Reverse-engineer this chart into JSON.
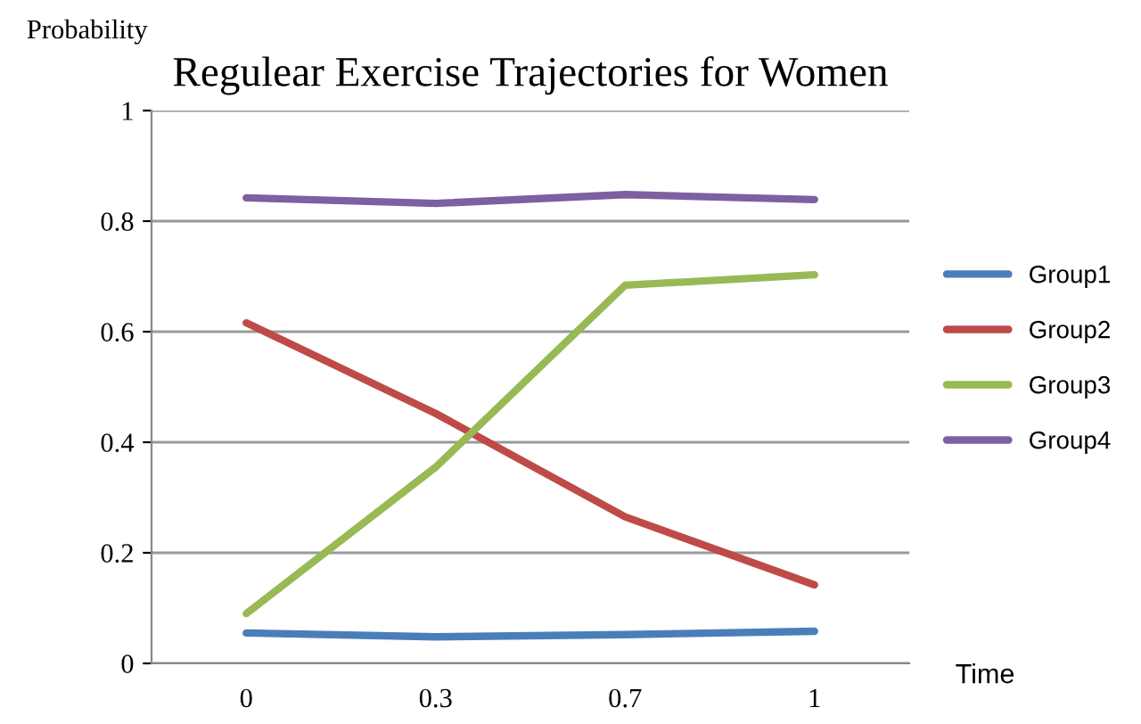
{
  "chart_data": {
    "type": "line",
    "title": "Regulear Exercise Trajectories for Women",
    "xlabel": "Time",
    "ylabel": "Probability",
    "categories": [
      "0",
      "0.3",
      "0.7",
      "1"
    ],
    "series": [
      {
        "name": "Group1",
        "color": "#4a7ebb",
        "values": [
          0.055,
          0.048,
          0.052,
          0.058
        ]
      },
      {
        "name": "Group2",
        "color": "#be4b48",
        "values": [
          0.616,
          0.452,
          0.265,
          0.142
        ]
      },
      {
        "name": "Group3",
        "color": "#98b954",
        "values": [
          0.09,
          0.355,
          0.684,
          0.703
        ]
      },
      {
        "name": "Group4",
        "color": "#7d60a0",
        "values": [
          0.842,
          0.832,
          0.848,
          0.839
        ]
      }
    ],
    "ylim": [
      0,
      1
    ],
    "yticks": [
      0,
      0.2,
      0.4,
      0.6,
      0.8,
      1
    ],
    "grid": "y",
    "legend": "right",
    "marker": "none",
    "line_style": "solid"
  }
}
